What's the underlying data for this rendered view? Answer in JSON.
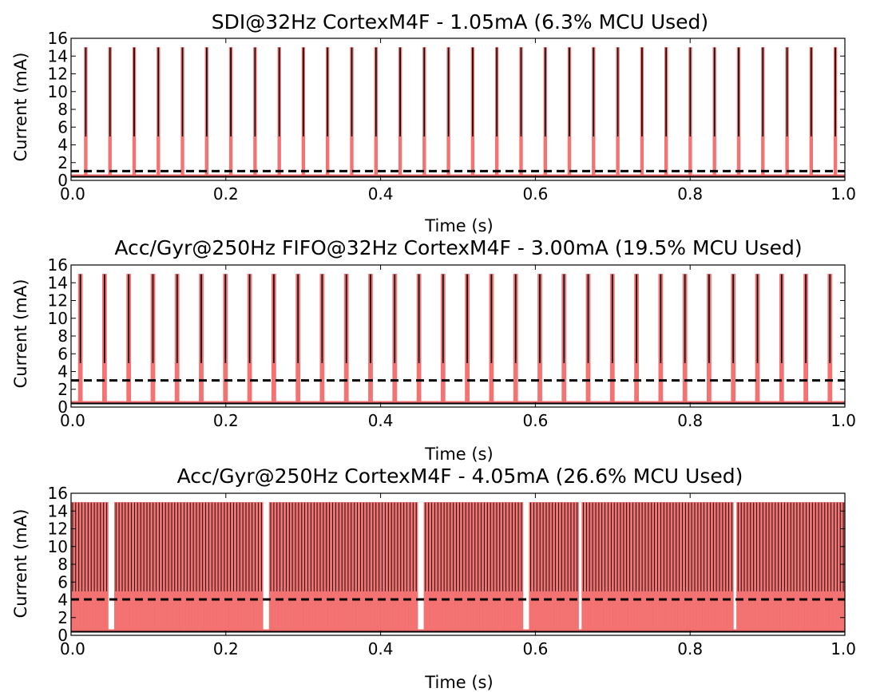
{
  "chart_data": [
    {
      "type": "line",
      "title": "SDI@32Hz CortexM4F - 1.05mA (6.3% MCU Used)",
      "xlabel": "Time (s)",
      "ylabel": "Current (mA)",
      "xlim": [
        0.0,
        1.0
      ],
      "ylim": [
        0,
        16
      ],
      "xticks": [
        "0.0",
        "0.2",
        "0.4",
        "0.6",
        "0.8",
        "1.0"
      ],
      "yticks": [
        "0",
        "2",
        "4",
        "6",
        "8",
        "10",
        "12",
        "14",
        "16"
      ],
      "grid": false,
      "baseline_current": 0.4,
      "average_current": 1.05,
      "pulse_peak": 15.0,
      "pulse_period": 0.03125,
      "first_pulse_time": 0.019,
      "pulse_width": 0.002,
      "colors": {
        "trace": "#000000",
        "fill": "#f26b6b",
        "average_line": "#000000"
      }
    },
    {
      "type": "line",
      "title": "Acc/Gyr@250Hz FIFO@32Hz CortexM4F - 3.00mA (19.5% MCU Used)",
      "xlabel": "Time (s)",
      "ylabel": "Current (mA)",
      "xlim": [
        0.0,
        1.0
      ],
      "ylim": [
        0,
        16
      ],
      "xticks": [
        "0.0",
        "0.2",
        "0.4",
        "0.6",
        "0.8",
        "1.0"
      ],
      "yticks": [
        "0",
        "2",
        "4",
        "6",
        "8",
        "10",
        "12",
        "14",
        "16"
      ],
      "grid": false,
      "baseline_current": 0.4,
      "average_current": 3.0,
      "pulse_peak": 15.0,
      "pulse_period": 0.03125,
      "first_pulse_time": 0.012,
      "pulse_width": 0.006,
      "colors": {
        "trace": "#000000",
        "fill": "#f26b6b",
        "average_line": "#000000"
      }
    },
    {
      "type": "line",
      "title": "Acc/Gyr@250Hz CortexM4F - 4.05mA (26.6% MCU Used)",
      "xlabel": "Time (s)",
      "ylabel": "Current (mA)",
      "xlim": [
        0.0,
        1.0
      ],
      "ylim": [
        0,
        16
      ],
      "xticks": [
        "0.0",
        "0.2",
        "0.4",
        "0.6",
        "0.8",
        "1.0"
      ],
      "yticks": [
        "0",
        "2",
        "4",
        "6",
        "8",
        "10",
        "12",
        "14",
        "16"
      ],
      "grid": false,
      "baseline_current": 0.4,
      "average_current": 4.05,
      "pulse_peak": 15.0,
      "pulse_period": 0.004,
      "first_pulse_time": 0.002,
      "pulse_width": 0.0011,
      "gap_times": [
        0.052,
        0.252,
        0.452,
        0.585,
        0.59,
        0.658,
        0.858
      ],
      "colors": {
        "trace": "#000000",
        "fill": "#f26b6b",
        "average_line": "#000000"
      }
    }
  ]
}
